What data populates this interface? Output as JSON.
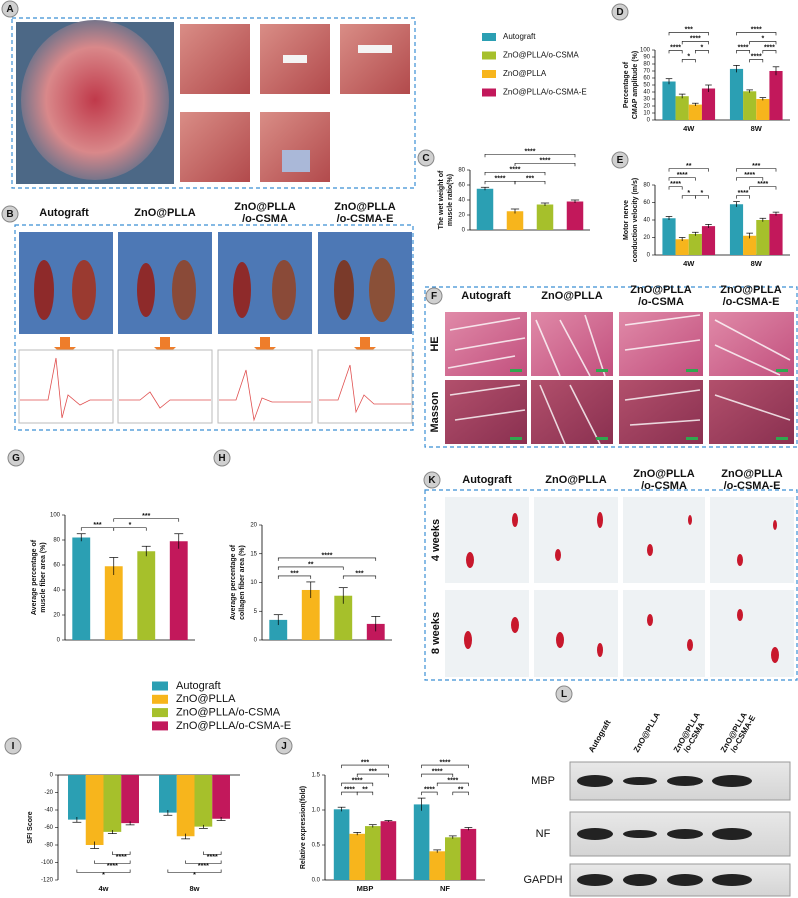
{
  "panels": {
    "letters": [
      "A",
      "B",
      "C",
      "D",
      "E",
      "F",
      "G",
      "H",
      "I",
      "J",
      "K",
      "L"
    ],
    "B": {
      "columns": [
        [
          "Autograft"
        ],
        [
          "ZnO@PLLA"
        ],
        [
          "ZnO@PLLA",
          "/o-CSMA"
        ],
        [
          "ZnO@PLLA",
          "/o-CSMA-E"
        ]
      ]
    },
    "F": {
      "columns": [
        [
          "Autograft"
        ],
        [
          "ZnO@PLLA"
        ],
        [
          "ZnO@PLLA",
          "/o-CSMA"
        ],
        [
          "ZnO@PLLA",
          "/o-CSMA-E"
        ]
      ],
      "rows": [
        "HE",
        "Masson"
      ]
    },
    "K": {
      "columns": [
        [
          "Autograft"
        ],
        [
          "ZnO@PLLA"
        ],
        [
          "ZnO@PLLA",
          "/o-CSMA"
        ],
        [
          "ZnO@PLLA",
          "/o-CSMA-E"
        ]
      ],
      "rows": [
        "4 weeks",
        "8 weeks"
      ]
    },
    "L": {
      "columns": [
        [
          "Autograft"
        ],
        [
          "ZnO@PLLA"
        ],
        [
          "ZnO@PLLA",
          "/o-CSMA"
        ],
        [
          "ZnO@PLLA",
          "/o-CSMA-E"
        ]
      ],
      "rows": [
        "MBP",
        "NF",
        "GAPDH"
      ]
    }
  },
  "chart_data": [
    {
      "type": "bar",
      "ylabel": [
        "The wet weight of",
        "muscle ratio(%)"
      ],
      "categories": [
        null,
        null,
        null,
        null
      ],
      "values": [
        55,
        25,
        34,
        38
      ],
      "errors": [
        2,
        3,
        2,
        2
      ],
      "colors": [
        "#2b9fb3",
        "#f7b51c",
        "#a6c02b",
        "#c2185b"
      ],
      "ylim": [
        0,
        80
      ],
      "yticks": [
        0,
        20,
        40,
        60,
        80
      ],
      "annotations": [
        "****",
        "****",
        "****",
        "****",
        "***"
      ]
    },
    {
      "type": "bar",
      "ylabel": [
        "Percentage of",
        "CMAP amplitude (%)"
      ],
      "categories": [
        "4W",
        "8W"
      ],
      "series": [
        {
          "name": "Autograft",
          "color": "#2b9fb3",
          "values": [
            55,
            73
          ],
          "errors": [
            4,
            5
          ]
        },
        {
          "name": "ZnO@PLLA/o-CSMA",
          "color": "#a6c02b",
          "values": [
            34,
            41
          ],
          "errors": [
            3,
            2
          ]
        },
        {
          "name": "ZnO@PLLA",
          "color": "#f7b51c",
          "values": [
            22,
            30
          ],
          "errors": [
            2,
            2
          ]
        },
        {
          "name": "ZnO@PLLA/o-CSMA-E",
          "color": "#c2185b",
          "values": [
            45,
            70
          ],
          "errors": [
            5,
            6
          ]
        }
      ],
      "ylim": [
        0,
        100
      ],
      "yticks": [
        0,
        10,
        20,
        30,
        40,
        50,
        60,
        70,
        80,
        90,
        100
      ],
      "annotations": [
        "***",
        "****",
        "*",
        "****",
        "*",
        "****",
        "****",
        "****",
        "*",
        "****"
      ]
    },
    {
      "type": "bar",
      "ylabel": [
        "Motor nerve",
        "conduction velocity (m/s)"
      ],
      "categories": [
        "4W",
        "8W"
      ],
      "series": [
        {
          "name": "Autograft",
          "color": "#2b9fb3",
          "values": [
            42,
            58
          ],
          "errors": [
            2,
            3
          ]
        },
        {
          "name": "ZnO@PLLA",
          "color": "#f7b51c",
          "values": [
            18,
            22
          ],
          "errors": [
            2,
            3
          ]
        },
        {
          "name": "ZnO@PLLA/o-CSMA",
          "color": "#a6c02b",
          "values": [
            24,
            40
          ],
          "errors": [
            2,
            2
          ]
        },
        {
          "name": "ZnO@PLLA/o-CSMA-E",
          "color": "#c2185b",
          "values": [
            33,
            47
          ],
          "errors": [
            2,
            2
          ]
        }
      ],
      "ylim": [
        0,
        80
      ],
      "yticks": [
        0,
        20,
        40,
        60,
        80
      ],
      "annotations": [
        "**",
        "****",
        "****",
        "*",
        "*",
        "***",
        "****",
        "****",
        "****"
      ]
    },
    {
      "type": "bar",
      "ylabel": [
        "Average percentage of",
        "muscle fiber area (%)"
      ],
      "categories": [
        null,
        null,
        null,
        null
      ],
      "values": [
        82,
        59,
        71,
        79
      ],
      "errors": [
        3,
        7,
        4,
        6
      ],
      "colors": [
        "#2b9fb3",
        "#f7b51c",
        "#a6c02b",
        "#c2185b"
      ],
      "ylim": [
        0,
        100
      ],
      "yticks": [
        0,
        20,
        40,
        60,
        80,
        100
      ],
      "annotations": [
        "***",
        "*",
        "***"
      ]
    },
    {
      "type": "bar",
      "ylabel": [
        "Average percentage of",
        "collagen fiber area (%)"
      ],
      "categories": [
        null,
        null,
        null,
        null
      ],
      "values": [
        3.5,
        8.7,
        7.7,
        2.8
      ],
      "errors": [
        0.9,
        1.4,
        1.4,
        1.3
      ],
      "colors": [
        "#2b9fb3",
        "#f7b51c",
        "#a6c02b",
        "#c2185b"
      ],
      "ylim": [
        0,
        20
      ],
      "yticks": [
        0,
        5,
        10,
        15,
        20
      ],
      "annotations": [
        "****",
        "**",
        "***",
        "***"
      ]
    },
    {
      "type": "bar",
      "ylabel": [
        "SFI Score"
      ],
      "categories": [
        "4w",
        "8w"
      ],
      "series": [
        {
          "name": "Autograft",
          "color": "#2b9fb3",
          "values": [
            -51,
            -43
          ],
          "errors": [
            3,
            3
          ]
        },
        {
          "name": "ZnO@PLLA",
          "color": "#f7b51c",
          "values": [
            -80,
            -70
          ],
          "errors": [
            4,
            3
          ]
        },
        {
          "name": "ZnO@PLLA/o-CSMA",
          "color": "#a6c02b",
          "values": [
            -65,
            -59
          ],
          "errors": [
            2,
            2
          ]
        },
        {
          "name": "ZnO@PLLA/o-CSMA-E",
          "color": "#c2185b",
          "values": [
            -55,
            -50
          ],
          "errors": [
            2,
            2
          ]
        }
      ],
      "ylim": [
        -120,
        0
      ],
      "yticks": [
        -120,
        -100,
        -80,
        -60,
        -40,
        -20,
        0
      ],
      "annotations": [
        "****",
        "****",
        "*",
        "****",
        "****",
        "*"
      ]
    },
    {
      "type": "bar",
      "ylabel": [
        "Relative expression(fold)"
      ],
      "categories": [
        "MBP",
        "NF"
      ],
      "series": [
        {
          "name": "Autograft",
          "color": "#2b9fb3",
          "values": [
            1.01,
            1.08
          ],
          "errors": [
            0.03,
            0.09
          ]
        },
        {
          "name": "ZnO@PLLA",
          "color": "#f7b51c",
          "values": [
            0.66,
            0.41
          ],
          "errors": [
            0.02,
            0.02
          ]
        },
        {
          "name": "ZnO@PLLA/o-CSMA",
          "color": "#a6c02b",
          "values": [
            0.77,
            0.61
          ],
          "errors": [
            0.02,
            0.02
          ]
        },
        {
          "name": "ZnO@PLLA/o-CSMA-E",
          "color": "#c2185b",
          "values": [
            0.84,
            0.73
          ],
          "errors": [
            0.01,
            0.02
          ]
        }
      ],
      "ylim": [
        0,
        1.5
      ],
      "yticks": [
        {
          "value": 0,
          "label": "0.0"
        },
        0.5,
        {
          "value": 1,
          "label": "1.0"
        },
        1.5
      ],
      "annotations": [
        "***",
        "***",
        "****",
        "****",
        "**",
        "****",
        "****",
        "****",
        "****",
        "**"
      ]
    }
  ]
}
